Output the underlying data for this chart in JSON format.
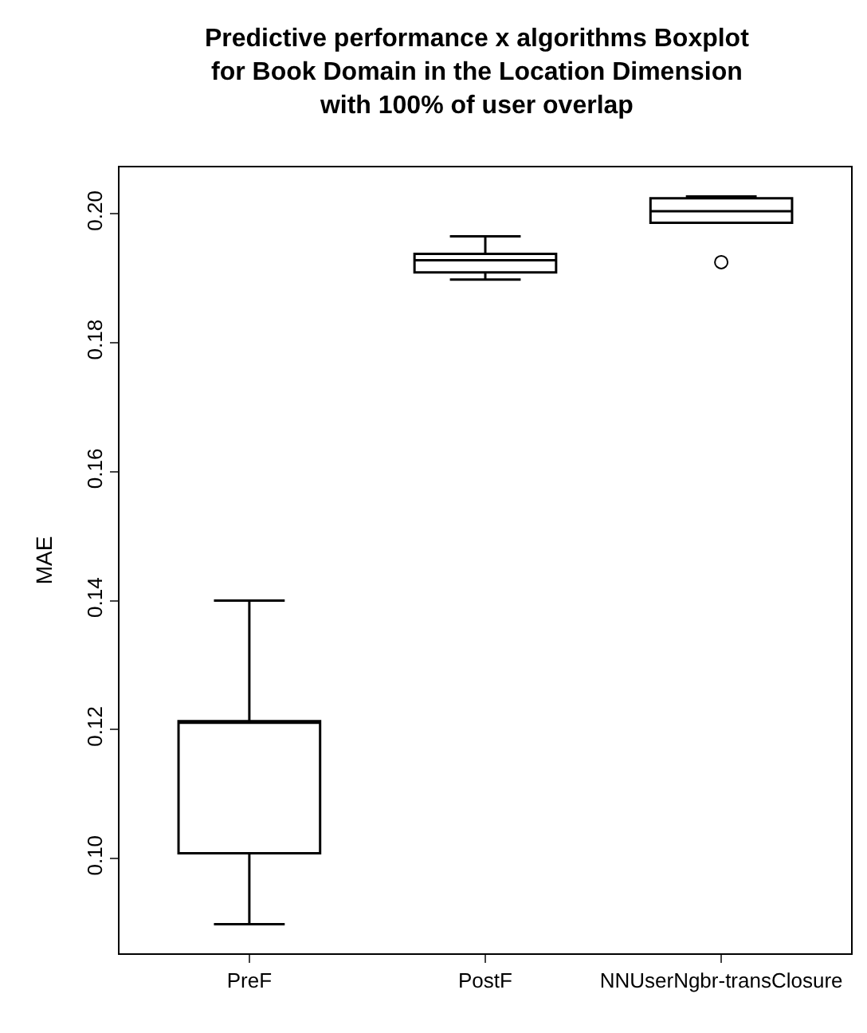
{
  "chart_data": {
    "type": "box",
    "title": "Predictive performance x algorithms Boxplot\nfor Book Domain in the Location Dimension\nwith 100% of user overlap",
    "ylabel": "MAE",
    "categories": [
      "PreF",
      "PostF",
      "NNUserNgbr-transClosure"
    ],
    "boxes": [
      {
        "low": 0.0898,
        "q1": 0.1008,
        "median": 0.1211,
        "q3": 0.1213,
        "high": 0.14
      },
      {
        "low": 0.1898,
        "q1": 0.1909,
        "median": 0.1928,
        "q3": 0.1938,
        "high": 0.1965
      },
      {
        "low": 0.1986,
        "q1": 0.1986,
        "median": 0.2004,
        "q3": 0.2024,
        "high": 0.2027,
        "outliers": [
          0.1925
        ]
      }
    ],
    "ylim": [
      0.0853,
      0.2072
    ],
    "yticks": [
      {
        "value": 0.1,
        "label": "0.10"
      },
      0.12,
      0.14,
      0.16,
      0.18,
      {
        "value": 0.2,
        "label": "0.20"
      }
    ]
  }
}
